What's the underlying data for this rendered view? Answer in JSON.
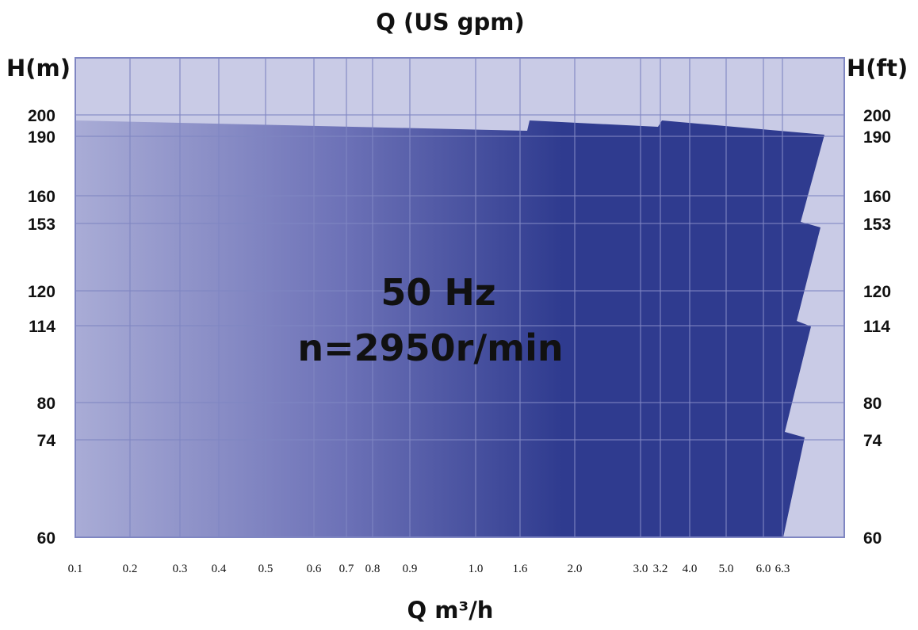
{
  "chart_data": {
    "type": "area",
    "title": "Q (US gpm)",
    "xlabel": "Q m³/h",
    "ylabel_left": "H(m)",
    "ylabel_right": "H(ft)",
    "annotations": [
      "50 Hz",
      "n=2950r/min"
    ],
    "x_ticks": [
      "0.1",
      "0.2",
      "0.3",
      "0.4",
      "0.5",
      "0.6",
      "0.7",
      "0.8",
      "0.9",
      "1.0",
      "1.6",
      "2.0",
      "3.0",
      "3.2",
      "4.0",
      "5.0",
      "6.0",
      "6.3"
    ],
    "y_ticks_left": [
      "200",
      "190",
      "160",
      "153",
      "120",
      "114",
      "80",
      "74",
      "60"
    ],
    "y_ticks_right": [
      "200",
      "190",
      "160",
      "153",
      "120",
      "114",
      "80",
      "74",
      "60"
    ],
    "grid": true,
    "colors": {
      "plot_bg": "#c9cbe6",
      "area_light": "#a9acd6",
      "area_dark": "#2f3b8f",
      "grid": "#7f86c2"
    },
    "series": []
  }
}
